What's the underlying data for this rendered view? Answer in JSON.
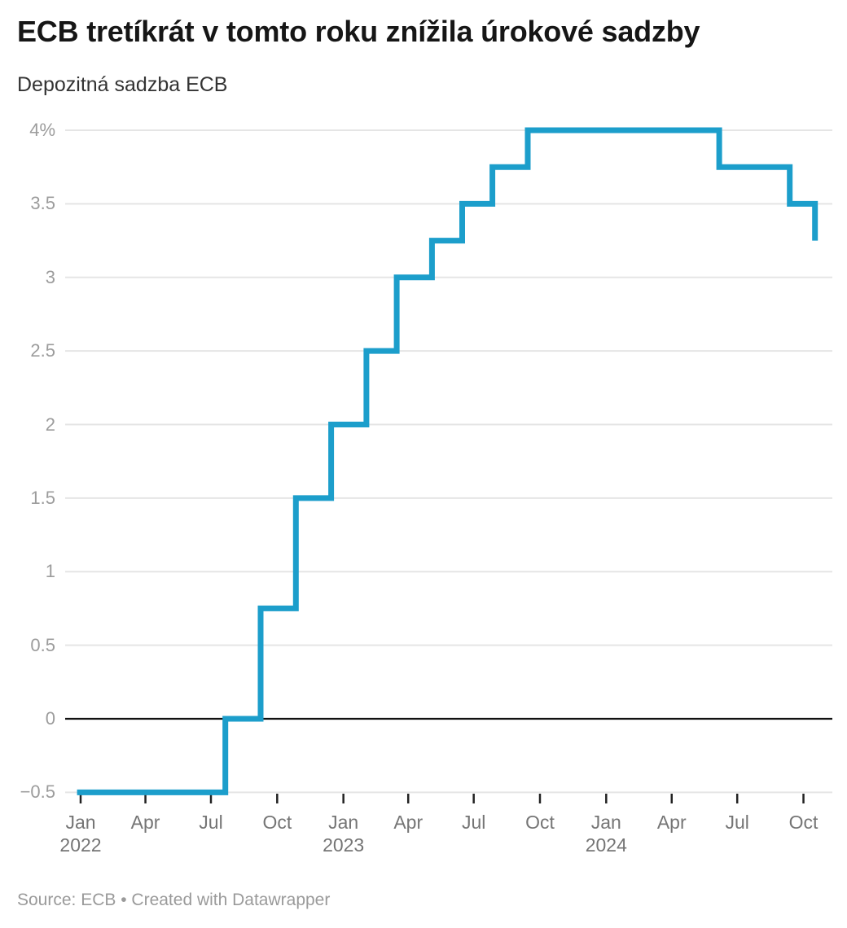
{
  "header": {
    "title": "ECB tretíkrát v tomto roku znížila úrokové sadzby",
    "subtitle": "Depozitná sadzba ECB"
  },
  "footer": {
    "text": "Source: ECB • Created with Datawrapper"
  },
  "chart_data": {
    "type": "line",
    "step": true,
    "title": "ECB tretíkrát v tomto roku znížila úrokové sadzby",
    "subtitle": "Depozitná sadzba ECB",
    "source": "Source: ECB • Created with Datawrapper",
    "unit": "%",
    "ylim": [
      -0.5,
      4
    ],
    "x_range": [
      "2021-12-27",
      "2024-10-17"
    ],
    "grid": true,
    "legend": "none",
    "line_color": "#1c9ecb",
    "grid_color": "#e5e5e5",
    "zero_line_color": "#111111",
    "tick_color": "#222222",
    "y_ticks": [
      {
        "value": 4,
        "label": "4%"
      },
      {
        "value": 3.5,
        "label": "3.5"
      },
      {
        "value": 3,
        "label": "3"
      },
      {
        "value": 2.5,
        "label": "2.5"
      },
      {
        "value": 2,
        "label": "2"
      },
      {
        "value": 1.5,
        "label": "1.5"
      },
      {
        "value": 1,
        "label": "1"
      },
      {
        "value": 0.5,
        "label": "0.5"
      },
      {
        "value": 0,
        "label": "0"
      },
      {
        "value": -0.5,
        "label": "−0.5"
      }
    ],
    "x_ticks": [
      {
        "date": "2022-01-01",
        "label": "Jan",
        "year": "2022"
      },
      {
        "date": "2022-04-01",
        "label": "Apr"
      },
      {
        "date": "2022-07-01",
        "label": "Jul"
      },
      {
        "date": "2022-10-01",
        "label": "Oct"
      },
      {
        "date": "2023-01-01",
        "label": "Jan",
        "year": "2023"
      },
      {
        "date": "2023-04-01",
        "label": "Apr"
      },
      {
        "date": "2023-07-01",
        "label": "Jul"
      },
      {
        "date": "2023-10-01",
        "label": "Oct"
      },
      {
        "date": "2024-01-01",
        "label": "Jan",
        "year": "2024"
      },
      {
        "date": "2024-04-01",
        "label": "Apr"
      },
      {
        "date": "2024-07-01",
        "label": "Jul"
      },
      {
        "date": "2024-10-01",
        "label": "Oct"
      }
    ],
    "series": [
      {
        "name": "Depozitná sadzba ECB",
        "points": [
          {
            "date": "2021-12-27",
            "value": -0.5
          },
          {
            "date": "2022-07-21",
            "value": 0.0
          },
          {
            "date": "2022-09-08",
            "value": 0.75
          },
          {
            "date": "2022-10-27",
            "value": 1.5
          },
          {
            "date": "2022-12-15",
            "value": 2.0
          },
          {
            "date": "2023-02-02",
            "value": 2.5
          },
          {
            "date": "2023-03-16",
            "value": 3.0
          },
          {
            "date": "2023-05-04",
            "value": 3.25
          },
          {
            "date": "2023-06-15",
            "value": 3.5
          },
          {
            "date": "2023-07-27",
            "value": 3.75
          },
          {
            "date": "2023-09-14",
            "value": 4.0
          },
          {
            "date": "2024-06-06",
            "value": 3.75
          },
          {
            "date": "2024-09-12",
            "value": 3.5
          },
          {
            "date": "2024-10-17",
            "value": 3.25
          }
        ]
      }
    ]
  }
}
